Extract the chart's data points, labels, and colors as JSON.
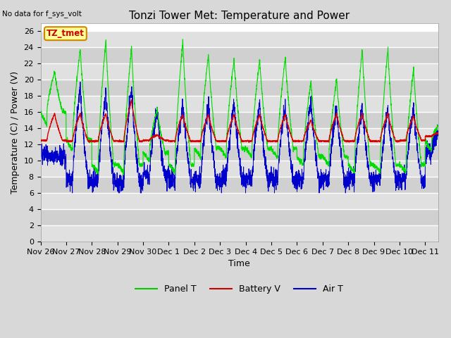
{
  "title": "Tonzi Tower Met: Temperature and Power",
  "no_data_text": "No data for f_sys_volt",
  "ylabel": "Temperature (C) / Power (V)",
  "xlabel": "Time",
  "ylim": [
    0,
    27
  ],
  "yticks": [
    0,
    2,
    4,
    6,
    8,
    10,
    12,
    14,
    16,
    18,
    20,
    22,
    24,
    26
  ],
  "bg_color": "#d8d8d8",
  "plot_bg_color_light": "#e0e0e0",
  "plot_bg_color_dark": "#c8c8c8",
  "grid_color": "#ffffff",
  "annotation_text": "TZ_tmet",
  "annotation_color": "#cc0000",
  "annotation_bg": "#ffff99",
  "annotation_border": "#cc8800",
  "legend_items": [
    "Panel T",
    "Battery V",
    "Air T"
  ],
  "legend_colors": [
    "#00cc00",
    "#cc0000",
    "#0000cc"
  ],
  "line_colors": {
    "panel": "#00dd00",
    "battery": "#dd0000",
    "air": "#0000cc"
  },
  "n_days": 15.5,
  "title_fontsize": 11,
  "axis_fontsize": 9,
  "tick_fontsize": 8,
  "tick_labels": [
    "Nov 26",
    "Nov 27",
    "Nov 28",
    "Nov 29",
    "Nov 30",
    "Dec 1",
    "Dec 2",
    "Dec 3",
    "Dec 4",
    "Dec 5",
    "Dec 6",
    "Dec 7",
    "Dec 8",
    "Dec 9",
    "Dec 10",
    "Dec 11"
  ]
}
